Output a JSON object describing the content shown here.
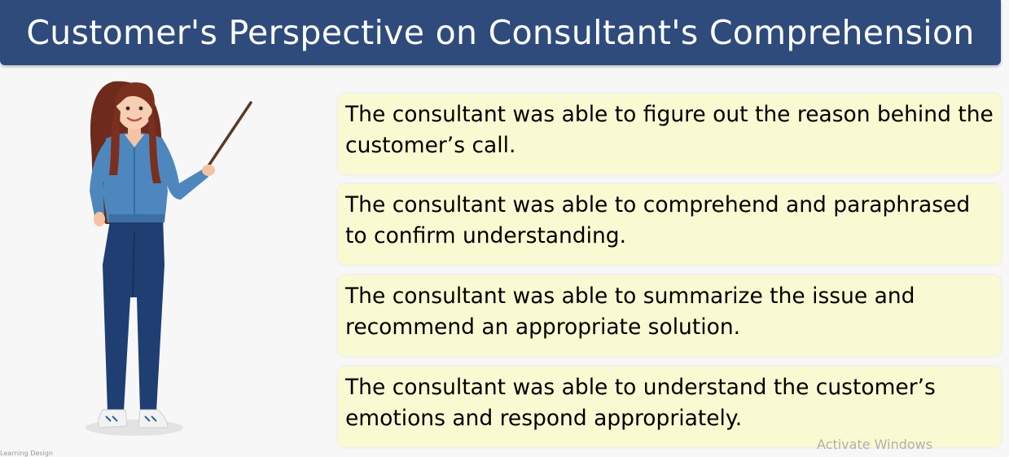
{
  "slide": {
    "title": "Customer's Perspective on Consultant's Comprehension",
    "items": [
      "The consultant was able to figure out the reason behind the customer’s call.",
      "The consultant was able to comprehend and paraphrased to confirm understanding.",
      "The consultant was able to summarize the issue and recommend an appropriate solution.",
      "The consultant was able to understand the customer’s emotions and respond appropriately."
    ],
    "colors": {
      "title_bar": "#2f4b7c",
      "card_background": "#fafad2",
      "page_background": "#f7f7f7"
    }
  },
  "overlay": {
    "watermark": "Activate Windows",
    "credit": "Learning Design"
  },
  "illustration": {
    "name": "woman-with-pointer-illustration"
  }
}
